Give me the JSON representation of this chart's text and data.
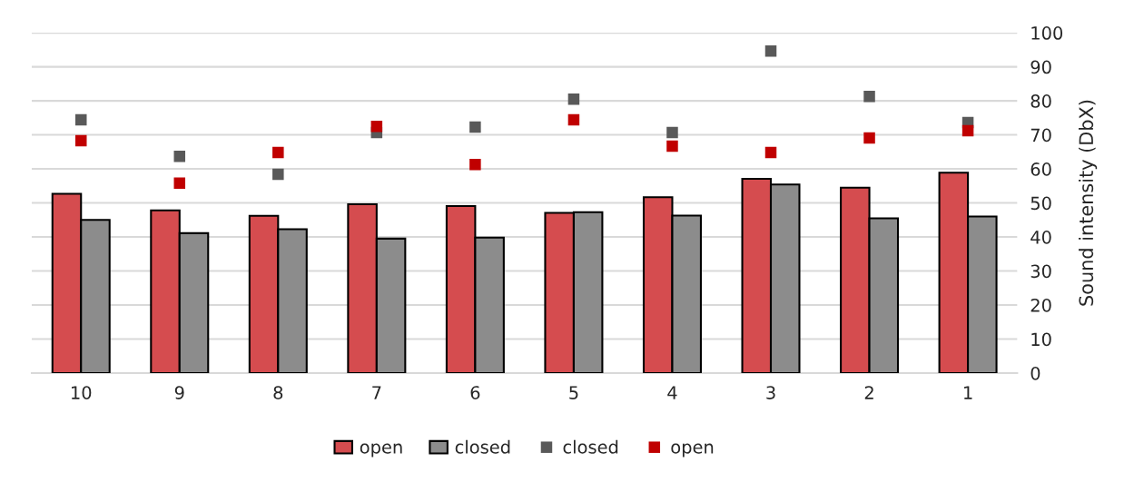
{
  "chart_data": {
    "type": "bar",
    "ylabel": "Sound intensity (DbX)",
    "categories": [
      "10",
      "9",
      "8",
      "7",
      "6",
      "5",
      "4",
      "3",
      "2",
      "1"
    ],
    "series": [
      {
        "name": "open",
        "color": "#d54c4f",
        "values": [
          52.7,
          47.8,
          46.2,
          49.6,
          49.1,
          47.1,
          51.7,
          57.1,
          54.5,
          58.9
        ]
      },
      {
        "name": "closed",
        "color": "#8c8c8c",
        "values": [
          45.0,
          41.1,
          42.3,
          39.5,
          39.8,
          47.3,
          46.3,
          55.4,
          45.5,
          46.0
        ]
      },
      {
        "name": "closed",
        "type": "scatter",
        "marker": "square",
        "color": "#595959",
        "values": [
          74.4,
          63.7,
          58.4,
          70.7,
          72.3,
          80.5,
          70.7,
          94.6,
          81.3,
          73.6
        ]
      },
      {
        "name": "open",
        "type": "scatter",
        "marker": "square",
        "color": "#c00000",
        "values": [
          68.3,
          55.8,
          64.8,
          72.5,
          61.3,
          74.4,
          66.7,
          64.8,
          69.1,
          71.2
        ]
      }
    ],
    "ylim": [
      0,
      100
    ],
    "yticks": [
      0,
      10,
      20,
      30,
      40,
      50,
      60,
      70,
      80,
      90,
      100
    ],
    "grid": "y",
    "legend": "bottom"
  }
}
